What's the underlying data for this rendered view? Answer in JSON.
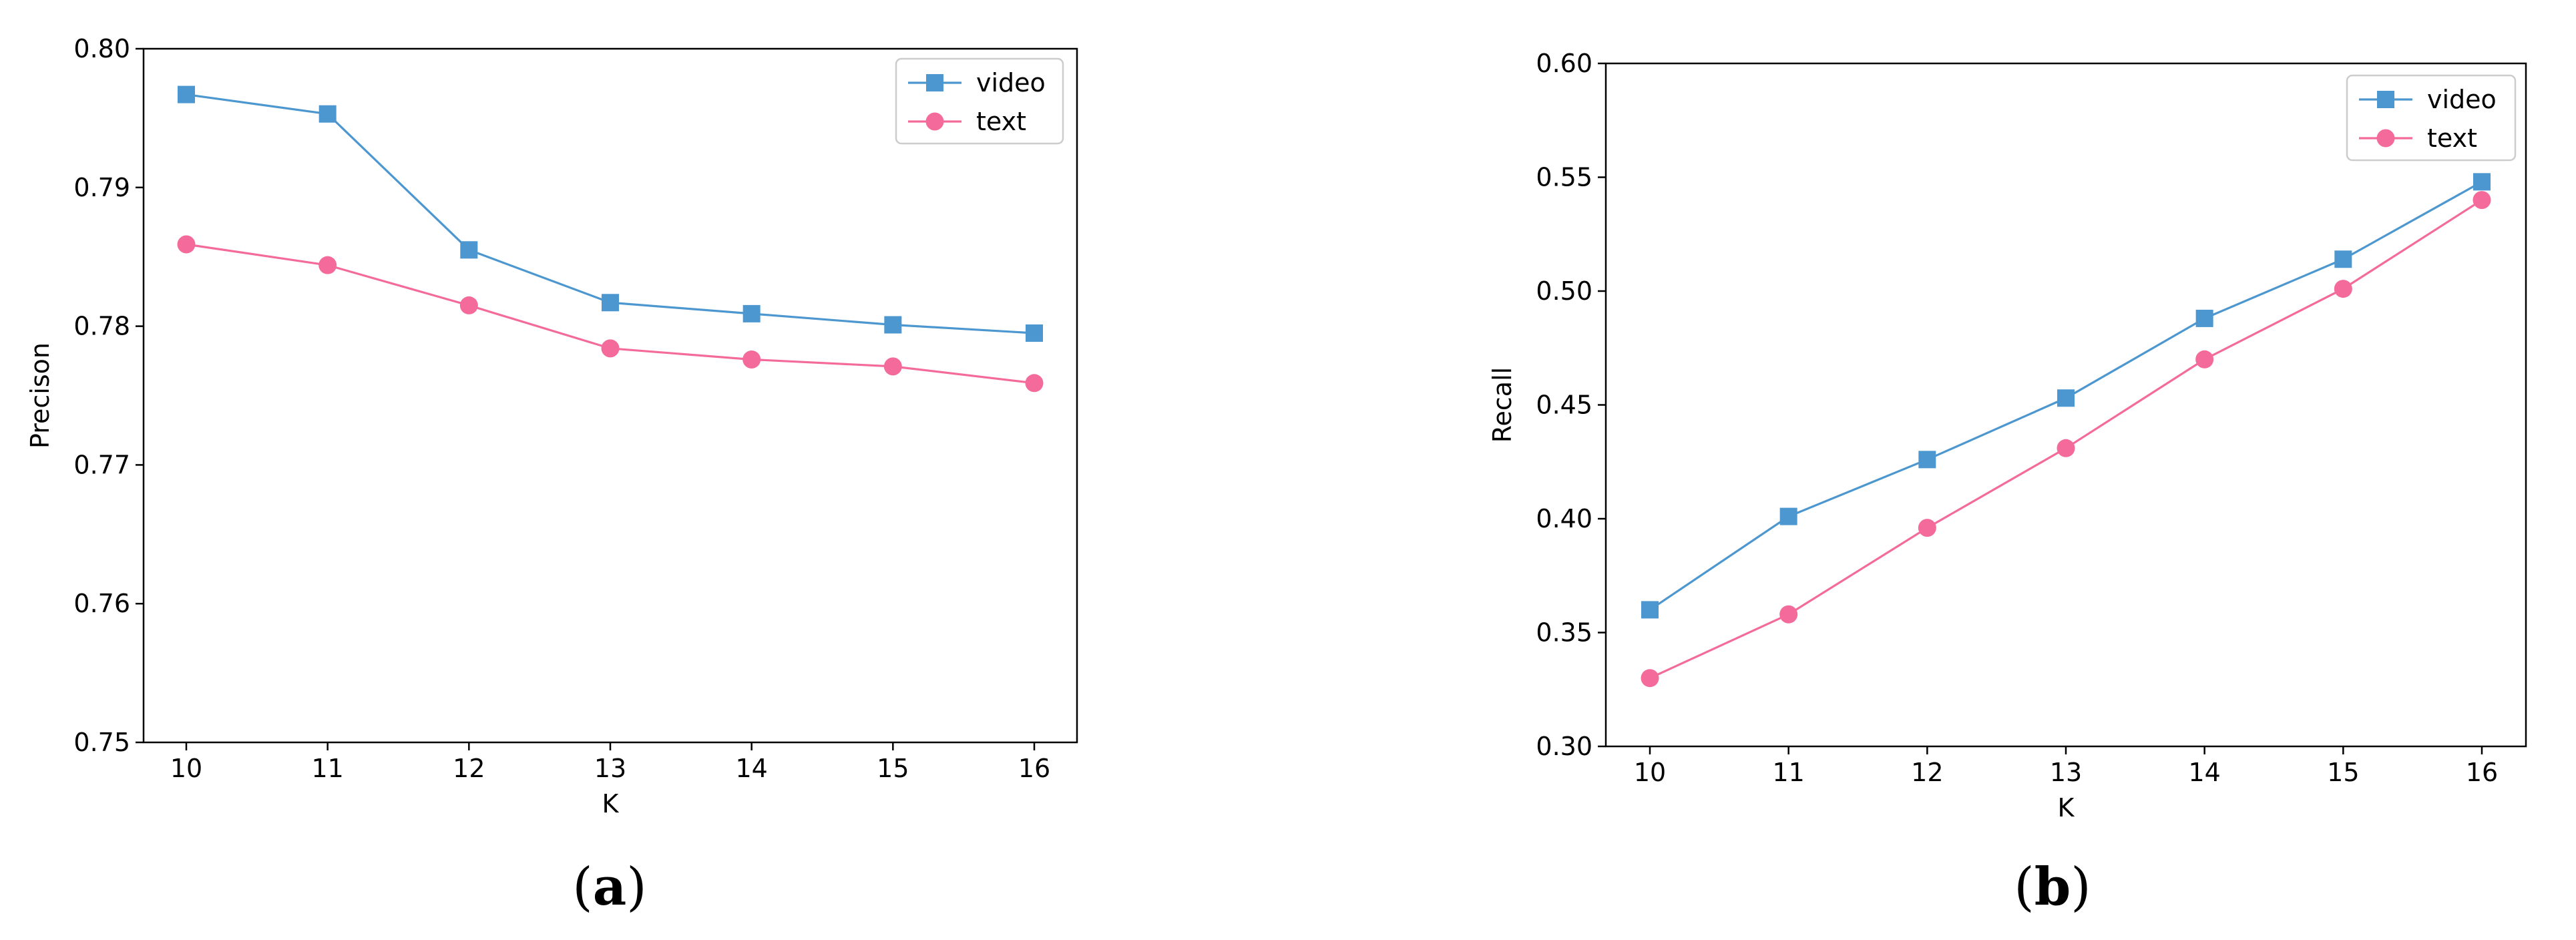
{
  "colors": {
    "video": "#4c97cf",
    "text": "#f46b9b",
    "axis": "#000000"
  },
  "chart_data": [
    {
      "type": "line",
      "panel_label": "(a)",
      "panel_letter": "a",
      "xlabel": "K",
      "ylabel": "Precison",
      "x": [
        10,
        11,
        12,
        13,
        14,
        15,
        16
      ],
      "xticks": [
        "10",
        "11",
        "12",
        "13",
        "14",
        "15",
        "16"
      ],
      "ylim": [
        0.75,
        0.8
      ],
      "yticks": [
        "0.75",
        "0.76",
        "0.77",
        "0.78",
        "0.79",
        "0.80"
      ],
      "legend": "top-right",
      "grid": false,
      "series": [
        {
          "name": "video",
          "marker": "square",
          "color": "#4c97cf",
          "values": [
            0.7967,
            0.7953,
            0.7855,
            0.7817,
            0.7809,
            0.7801,
            0.7795
          ]
        },
        {
          "name": "text",
          "marker": "circle",
          "color": "#f46b9b",
          "values": [
            0.7859,
            0.7844,
            0.7815,
            0.7784,
            0.7776,
            0.7771,
            0.7759
          ]
        }
      ]
    },
    {
      "type": "line",
      "panel_label": "(b)",
      "panel_letter": "b",
      "xlabel": "K",
      "ylabel": "Recall",
      "x": [
        10,
        11,
        12,
        13,
        14,
        15,
        16
      ],
      "xticks": [
        "10",
        "11",
        "12",
        "13",
        "14",
        "15",
        "16"
      ],
      "ylim": [
        0.3,
        0.6
      ],
      "yticks": [
        "0.30",
        "0.35",
        "0.40",
        "0.45",
        "0.50",
        "0.55",
        "0.60"
      ],
      "legend": "top-right",
      "grid": false,
      "series": [
        {
          "name": "video",
          "marker": "square",
          "color": "#4c97cf",
          "values": [
            0.36,
            0.401,
            0.426,
            0.453,
            0.488,
            0.514,
            0.548
          ]
        },
        {
          "name": "text",
          "marker": "circle",
          "color": "#f46b9b",
          "values": [
            0.33,
            0.358,
            0.396,
            0.431,
            0.47,
            0.501,
            0.54
          ]
        }
      ]
    }
  ]
}
